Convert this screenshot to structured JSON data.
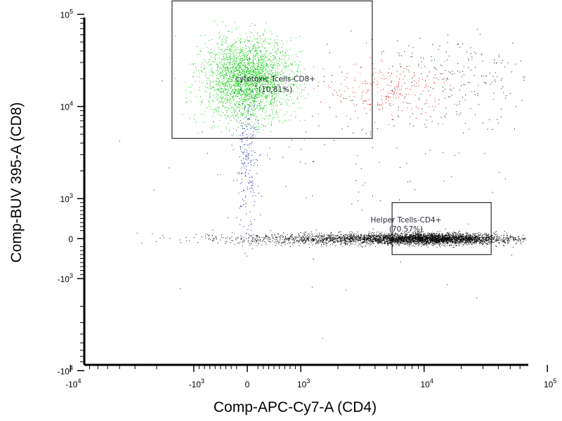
{
  "chart_data": {
    "type": "scatter",
    "xlabel": "Comp-APC-Cy7-A (CD4)",
    "ylabel": "Comp-BUV 395-A (CD8)",
    "x_scale": "biexponential",
    "y_scale": "biexponential",
    "xlim": [
      -20000,
      200000
    ],
    "ylim": [
      -15000,
      200000
    ],
    "x_ticks": [
      {
        "value": -10000,
        "base": "-10",
        "exp": "4"
      },
      {
        "value": -1000,
        "base": "-10",
        "exp": "3"
      },
      {
        "value": 0,
        "base": "0",
        "exp": ""
      },
      {
        "value": 1000,
        "base": "10",
        "exp": "3"
      },
      {
        "value": 10000,
        "base": "10",
        "exp": "4"
      },
      {
        "value": 100000,
        "base": "10",
        "exp": "5"
      }
    ],
    "y_ticks": [
      {
        "value": 100000,
        "base": "10",
        "exp": "5"
      },
      {
        "value": 10000,
        "base": "10",
        "exp": "4"
      },
      {
        "value": 1000,
        "base": "10",
        "exp": "3"
      },
      {
        "value": 0,
        "base": "0",
        "exp": ""
      },
      {
        "value": -1000,
        "base": "-10",
        "exp": "3"
      },
      {
        "value": -10000,
        "base": "-10",
        "exp": "4"
      }
    ],
    "populations": [
      {
        "color": "#00cc00",
        "center": [
          0,
          20000
        ],
        "spread": [
          0.18,
          0.22
        ],
        "count": 2600
      },
      {
        "color": "#ff0000",
        "center": [
          5000,
          15000
        ],
        "spread": [
          0.25,
          0.15
        ],
        "count": 220
      },
      {
        "color": "#0000aa",
        "center": [
          0,
          2500
        ],
        "spread": [
          0.05,
          0.45
        ],
        "count": 240
      },
      {
        "color": "#000000",
        "center": [
          5000,
          0
        ],
        "spread": [
          0.6,
          0.03
        ],
        "count": 2400
      },
      {
        "color": "#000000",
        "center": [
          12000,
          0
        ],
        "spread": [
          0.25,
          0.03
        ],
        "count": 1800
      },
      {
        "color": "#000000",
        "center": [
          15000,
          20000
        ],
        "spread": [
          0.35,
          0.25
        ],
        "count": 220
      },
      {
        "color": "#000000",
        "center": [
          3000,
          3000
        ],
        "spread": [
          0.9,
          0.6
        ],
        "count": 160
      }
    ],
    "gates": [
      {
        "label": "cytotoxic Tcells-CD8+",
        "percent": "(10.81%)",
        "x_range": [
          -1500,
          3800
        ],
        "y_range": [
          4500,
          140000
        ]
      },
      {
        "label": "Helper Tcells-CD4+",
        "percent": "(70.57%)",
        "x_range": [
          5500,
          35000
        ],
        "y_range": [
          -400,
          900
        ]
      }
    ],
    "grid": false,
    "legend": "none"
  }
}
